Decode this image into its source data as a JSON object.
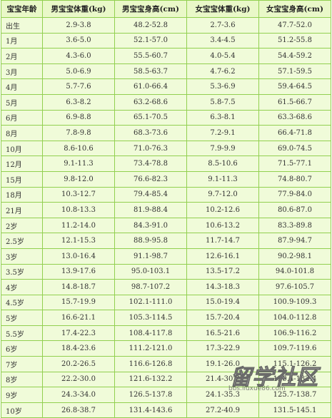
{
  "table": {
    "headers": [
      "宝宝年龄",
      "男宝宝体重(kg)",
      "男宝宝身高(cm)",
      "女宝宝体重(kg)",
      "女宝宝身高(cm)"
    ],
    "rows": [
      [
        "出生",
        "2.9-3.8",
        "48.2-52.8",
        "2.7-3.6",
        "47.7-52.0"
      ],
      [
        "1月",
        "3.6-5.0",
        "52.1-57.0",
        "3.4-4.5",
        "51.2-55.8"
      ],
      [
        "2月",
        "4.3-6.0",
        "55.5-60.7",
        "4.0-5.4",
        "54.4-59.2"
      ],
      [
        "3月",
        "5.0-6.9",
        "58.5-63.7",
        "4.7-6.2",
        "57.1-59.5"
      ],
      [
        "4月",
        "5.7-7.6",
        "61.0-66.4",
        "5.3-6.9",
        "59.4-64.5"
      ],
      [
        "5月",
        "6.3-8.2",
        "63.2-68.6",
        "5.8-7.5",
        "61.5-66.7"
      ],
      [
        "6月",
        "6.9-8.8",
        "65.1-70.5",
        "6.3-8.1",
        "63.3-68.6"
      ],
      [
        "8月",
        "7.8-9.8",
        "68.3-73.6",
        "7.2-9.1",
        "66.4-71.8"
      ],
      [
        "10月",
        "8.6-10.6",
        "71.0-76.3",
        "7.9-9.9",
        "69.0-74.5"
      ],
      [
        "12月",
        "9.1-11.3",
        "73.4-78.8",
        "8.5-10.6",
        "71.5-77.1"
      ],
      [
        "15月",
        "9.8-12.0",
        "76.6-82.3",
        "9.1-11.3",
        "74.8-80.7"
      ],
      [
        "18月",
        "10.3-12.7",
        "79.4-85.4",
        "9.7-12.0",
        "77.9-84.0"
      ],
      [
        "21月",
        "10.8-13.3",
        "81.9-88.4",
        "10.2-12.6",
        "80.6-87.0"
      ],
      [
        "2岁",
        "11.2-14.0",
        "84.3-91.0",
        "10.6-13.2",
        "83.3-89.8"
      ],
      [
        "2.5岁",
        "12.1-15.3",
        "88.9-95.8",
        "11.7-14.7",
        "87.9-94.7"
      ],
      [
        "3岁",
        "13.0-16.4",
        "91.1-98.7",
        "12.6-16.1",
        "90.2-98.1"
      ],
      [
        "3.5岁",
        "13.9-17.6",
        "95.0-103.1",
        "13.5-17.2",
        "94.0-101.8"
      ],
      [
        "4岁",
        "14.8-18.7",
        "98.7-107.2",
        "14.3-18.3",
        "97.6-105.7"
      ],
      [
        "4.5岁",
        "15.7-19.9",
        "102.1-111.0",
        "15.0-19.4",
        "100.9-109.3"
      ],
      [
        "5岁",
        "16.6-21.1",
        "105.3-114.5",
        "15.7-20.4",
        "104.0-112.8"
      ],
      [
        "5.5岁",
        "17.4-22.3",
        "108.4-117.8",
        "16.5-21.6",
        "106.9-116.2"
      ],
      [
        "6岁",
        "18.4-23.6",
        "111.2-121.0",
        "17.3-22.9",
        "109.7-119.6"
      ],
      [
        "7岁",
        "20.2-26.5",
        "116.6-126.8",
        "19.1-26.0",
        "115.1-126.2"
      ],
      [
        "8岁",
        "22.2-30.0",
        "121.6-132.2",
        "21.4-30.2",
        "120.4-132.4"
      ],
      [
        "9岁",
        "24.3-34.0",
        "126.5-137.8",
        "24.1-35.3",
        "125.7-138.7"
      ],
      [
        "10岁",
        "26.8-38.7",
        "131.4-143.6",
        "27.2-40.9",
        "131.5-145.1"
      ]
    ]
  },
  "watermark": {
    "text": "留学社区",
    "url": "bbs.liuxue86.com"
  }
}
